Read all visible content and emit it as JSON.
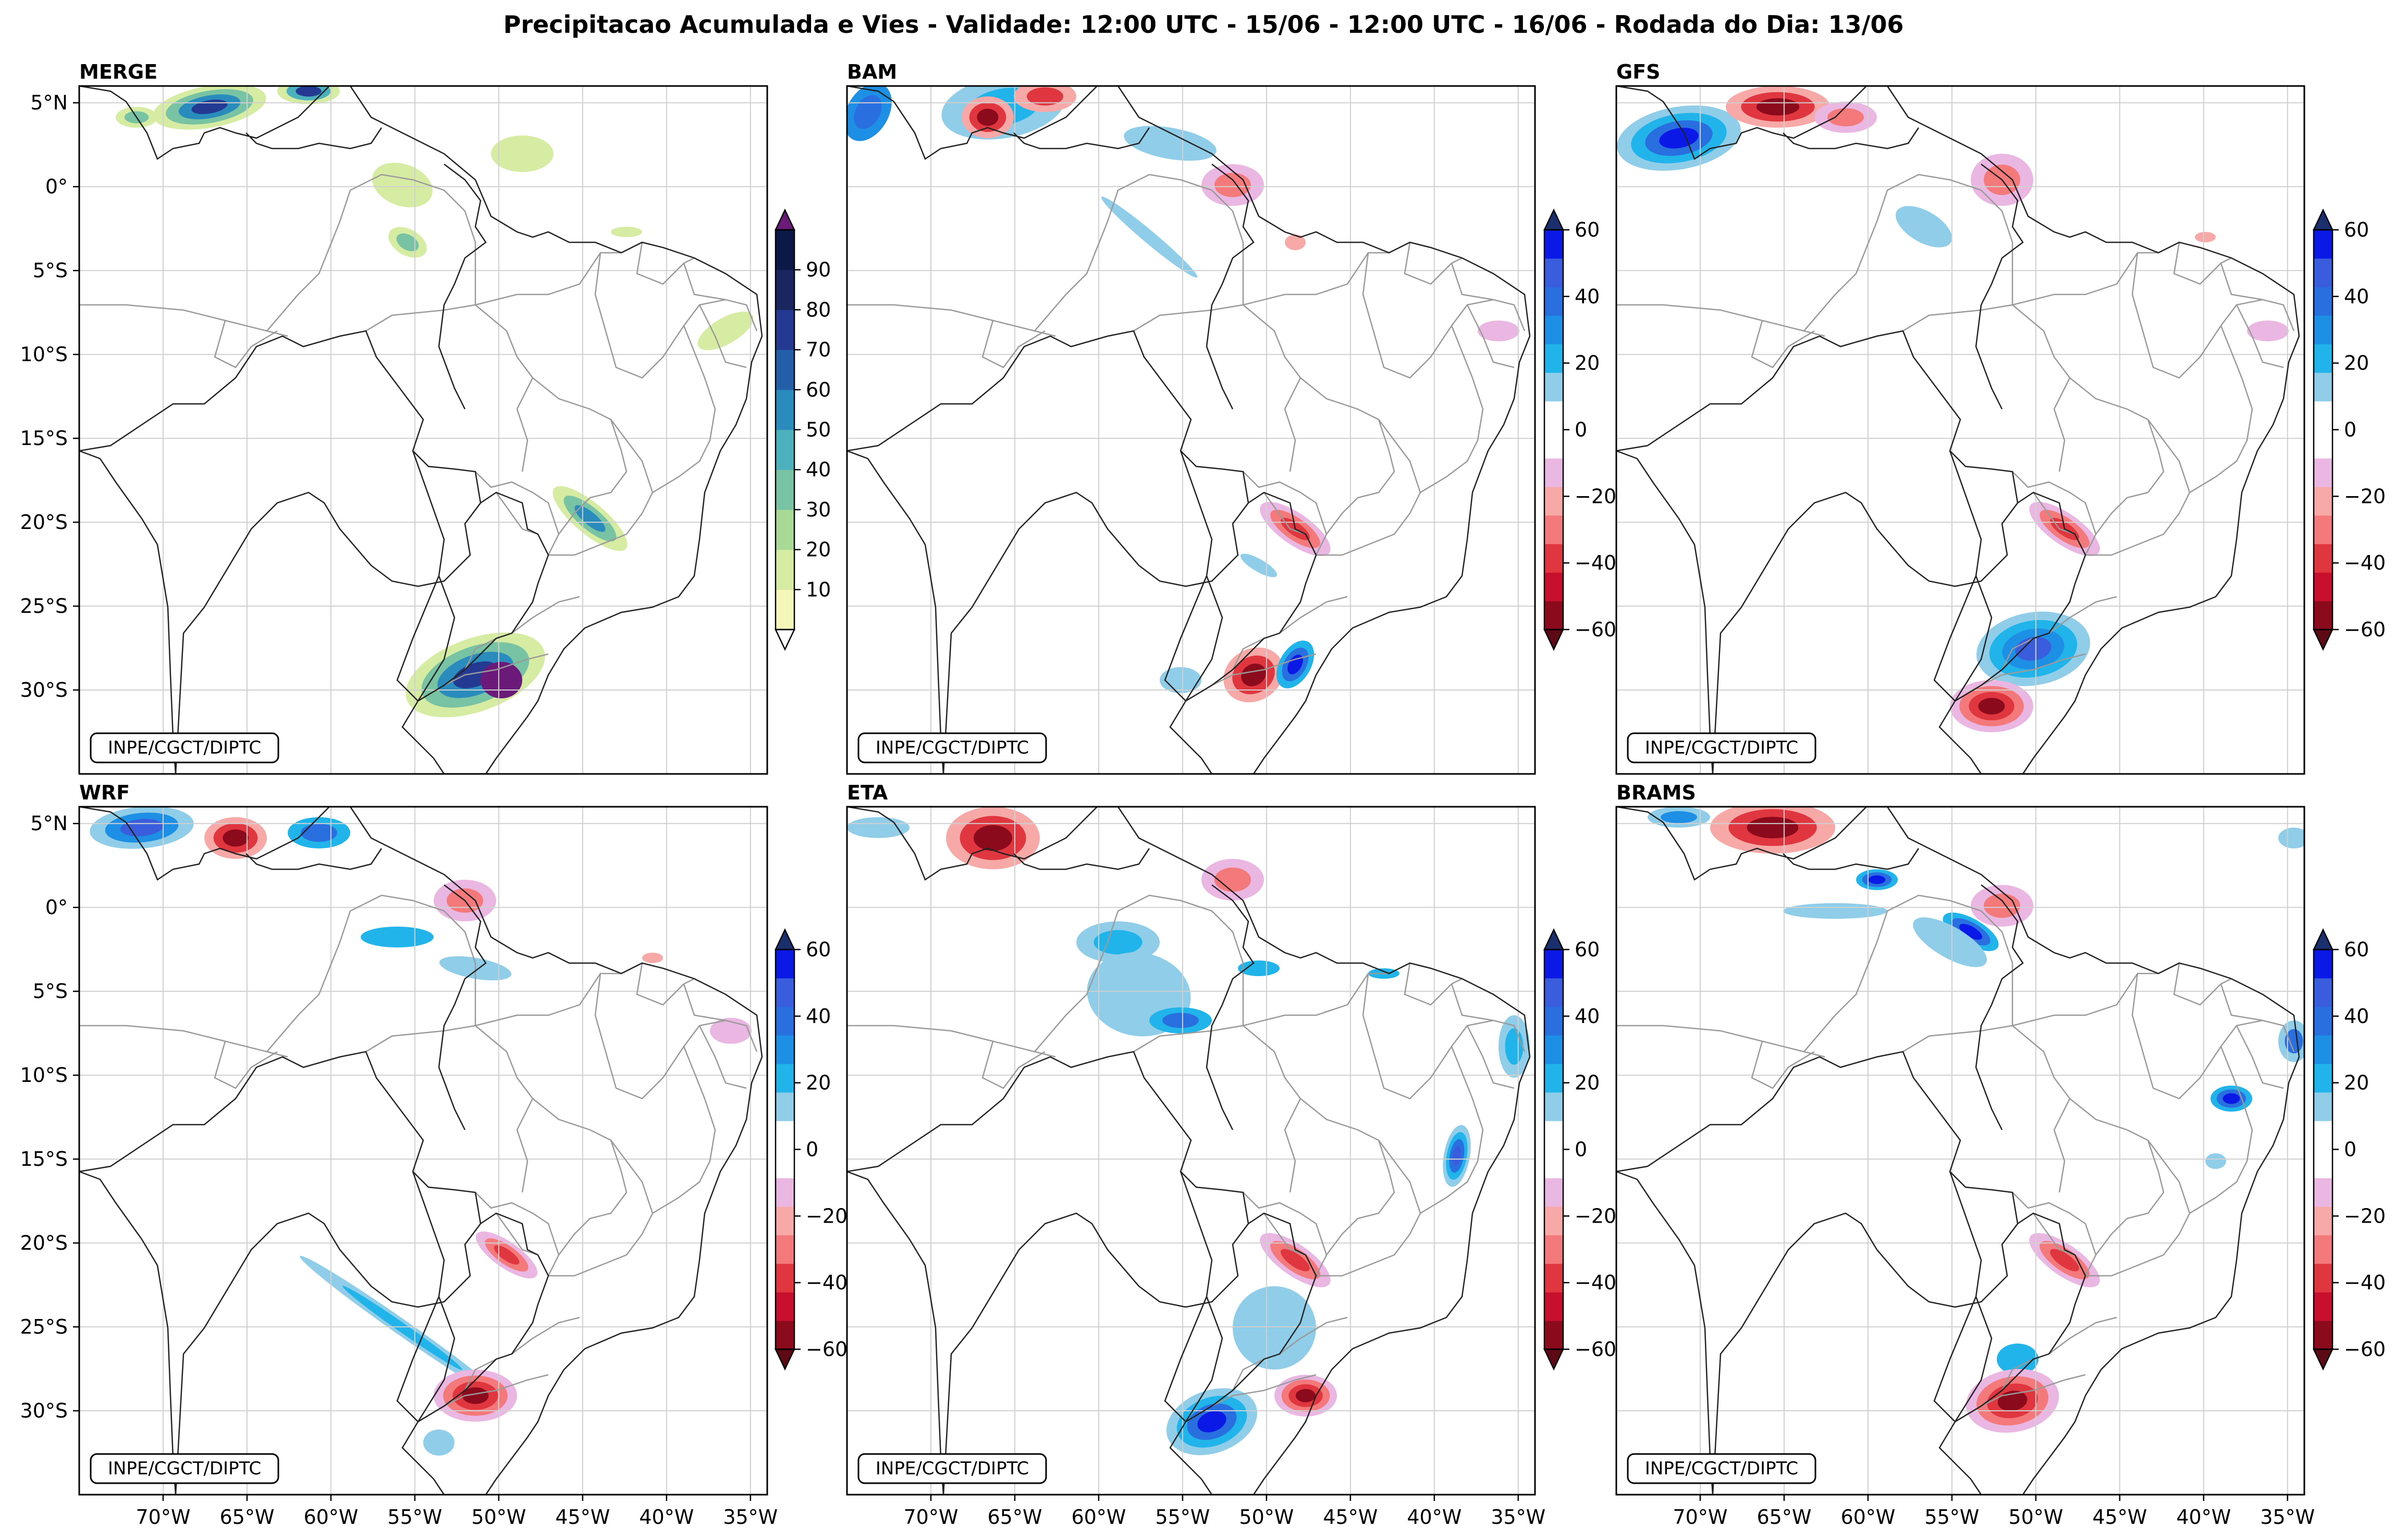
{
  "title": "Precipitacao Acumulada e Vies - Validade: 12:00 UTC - 15/06 - 12:00 UTC - 16/06 - Rodada do Dia: 13/06",
  "credit": "INPE/CGCT/DIPTC",
  "lat_labels": [
    "5°N",
    "0°",
    "5°S",
    "10°S",
    "15°S",
    "20°S",
    "25°S",
    "30°S"
  ],
  "lon_labels": [
    "70°W",
    "65°W",
    "60°W",
    "55°W",
    "50°W",
    "45°W",
    "40°W",
    "35°W"
  ],
  "panels": [
    {
      "name": "MERGE"
    },
    {
      "name": "BAM"
    },
    {
      "name": "GFS"
    },
    {
      "name": "WRF"
    },
    {
      "name": "ETA"
    },
    {
      "name": "BRAMS"
    }
  ],
  "colorbars": {
    "precip": {
      "ticks": [
        "10",
        "20",
        "30",
        "40",
        "50",
        "60",
        "70",
        "80",
        "90"
      ],
      "colors": [
        "#f4f7b8",
        "#d6eca2",
        "#a9da95",
        "#78c3a3",
        "#4db1bd",
        "#2a8cbc",
        "#235fa8",
        "#243a92",
        "#1b2661",
        "#0c1845"
      ],
      "over": "#6b1a7a",
      "under": "#ffffff"
    },
    "bias": {
      "ticks": [
        "−60",
        "−40",
        "−20",
        "0",
        "20",
        "40",
        "60"
      ],
      "colors": [
        "#8b0a1b",
        "#c8102e",
        "#e0363f",
        "#f4797b",
        "#f7a9a8",
        "#eab6e2",
        "#ffffff",
        "#ffffff",
        "#8fcde8",
        "#21b4ea",
        "#1d8fe4",
        "#2a6fe0",
        "#3a5ddd",
        "#0b19e6"
      ],
      "over": "#1a2f6d",
      "under": "#5e0a14"
    }
  },
  "legend_colors": {
    "brazil_states": "#9a9a9a",
    "countries": "#222222",
    "gridlines": "#d0d0d0"
  }
}
